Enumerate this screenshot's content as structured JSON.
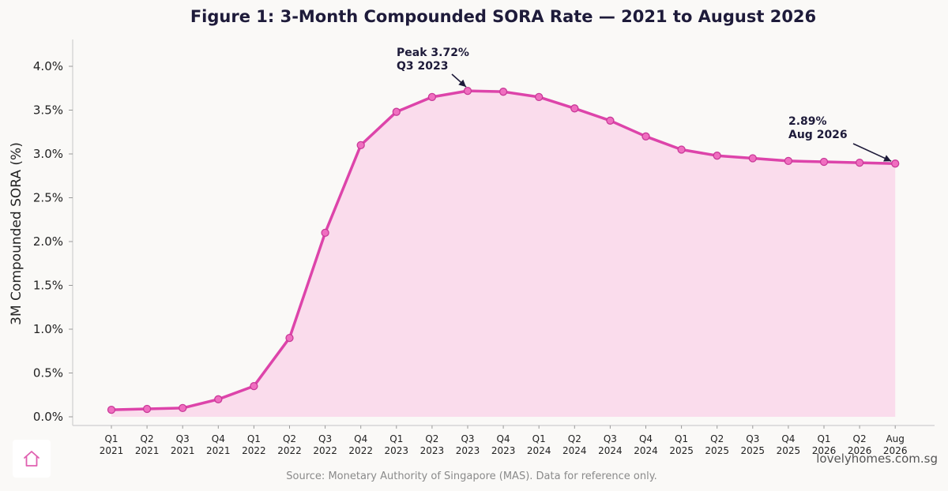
{
  "chart_data": {
    "type": "line",
    "title": "Figure 1: 3-Month Compounded SORA Rate — 2021 to August 2026",
    "ylabel": "3M Compounded SORA (%)",
    "xlabel": "",
    "ylim": [
      -0.1,
      4.3
    ],
    "yticks": [
      "0.0%",
      "0.5%",
      "1.0%",
      "1.5%",
      "2.0%",
      "2.5%",
      "3.0%",
      "3.5%",
      "4.0%"
    ],
    "grid": false,
    "categories": [
      [
        "Q1",
        "2021"
      ],
      [
        "Q2",
        "2021"
      ],
      [
        "Q3",
        "2021"
      ],
      [
        "Q4",
        "2021"
      ],
      [
        "Q1",
        "2022"
      ],
      [
        "Q2",
        "2022"
      ],
      [
        "Q3",
        "2022"
      ],
      [
        "Q4",
        "2022"
      ],
      [
        "Q1",
        "2023"
      ],
      [
        "Q2",
        "2023"
      ],
      [
        "Q3",
        "2023"
      ],
      [
        "Q4",
        "2023"
      ],
      [
        "Q1",
        "2024"
      ],
      [
        "Q2",
        "2024"
      ],
      [
        "Q3",
        "2024"
      ],
      [
        "Q4",
        "2024"
      ],
      [
        "Q1",
        "2025"
      ],
      [
        "Q2",
        "2025"
      ],
      [
        "Q3",
        "2025"
      ],
      [
        "Q4",
        "2025"
      ],
      [
        "Q1",
        "2026"
      ],
      [
        "Q2",
        "2026"
      ],
      [
        "Aug",
        "2026"
      ]
    ],
    "series": [
      {
        "values": [
          0.08,
          0.09,
          0.1,
          0.2,
          0.35,
          0.9,
          2.1,
          3.1,
          3.48,
          3.65,
          3.72,
          3.71,
          3.65,
          3.52,
          3.38,
          3.2,
          3.05,
          2.98,
          2.95,
          2.92,
          2.91,
          2.9,
          2.89
        ],
        "color": "#dd44aa",
        "fill": "#fadcec"
      }
    ],
    "annotations": [
      {
        "lines": [
          "Peak 3.72%",
          "Q3 2023"
        ],
        "point_index": 10
      },
      {
        "lines": [
          "2.89%",
          "Aug 2026"
        ],
        "point_index": 22
      }
    ]
  },
  "footer": {
    "source": "Source: Monetary Authority of Singapore (MAS). Data for reference only.",
    "brand": "lovelyhomes.com.sg"
  },
  "logo": {
    "icon": "house-icon",
    "color": "#e060b0"
  }
}
